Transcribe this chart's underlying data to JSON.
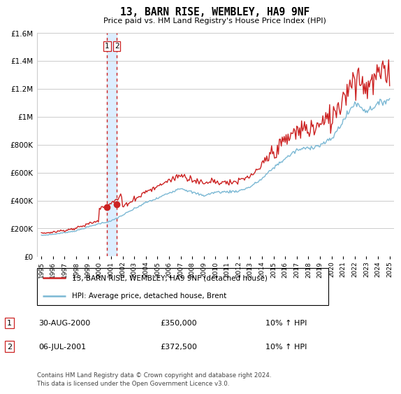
{
  "title": "13, BARN RISE, WEMBLEY, HA9 9NF",
  "subtitle": "Price paid vs. HM Land Registry's House Price Index (HPI)",
  "legend_line1": "13, BARN RISE, WEMBLEY, HA9 9NF (detached house)",
  "legend_line2": "HPI: Average price, detached house, Brent",
  "footnote": "Contains HM Land Registry data © Crown copyright and database right 2024.\nThis data is licensed under the Open Government Licence v3.0.",
  "transactions": [
    {
      "label": "1",
      "date": "30-AUG-2000",
      "price": 350000,
      "note": "10% ↑ HPI"
    },
    {
      "label": "2",
      "date": "06-JUL-2001",
      "price": 372500,
      "note": "10% ↑ HPI"
    }
  ],
  "vline_date1": 2000.664,
  "vline_date2": 2001.497,
  "sale_marker_dates": [
    2000.664,
    2001.497
  ],
  "sale_marker_prices": [
    350000,
    372500
  ],
  "hpi_color": "#7bb8d4",
  "price_color": "#cc2222",
  "vline_color": "#cc2222",
  "vband_color": "#ddeeff",
  "ylim": [
    0,
    1600000
  ],
  "xlim_left": 1994.6,
  "xlim_right": 2025.4,
  "background_color": "#ffffff",
  "grid_color": "#cccccc",
  "hpi_annual": [
    150000,
    158000,
    170000,
    183000,
    210000,
    235000,
    252000,
    295000,
    340000,
    385000,
    415000,
    455000,
    490000,
    458000,
    435000,
    460000,
    462000,
    468000,
    498000,
    555000,
    635000,
    700000,
    760000,
    778000,
    795000,
    840000,
    970000,
    1100000,
    1040000,
    1090000,
    1130000
  ],
  "price_scale": 1.56,
  "price_noise_scale": 0.018,
  "price_late_noise": 0.045,
  "hpi_noise_scale": 0.01
}
